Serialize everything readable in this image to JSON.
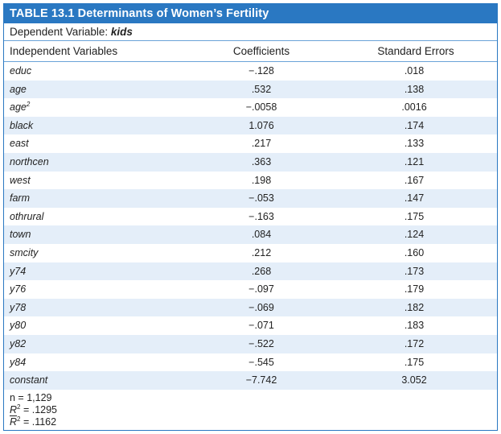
{
  "table": {
    "title": "TABLE 13.1  Determinants of Women’s Fertility",
    "dependent_label": "Dependent Variable:",
    "dependent_var": "kids",
    "headers": {
      "variables": "Independent Variables",
      "coefficients": "Coefficients",
      "std_errors": "Standard Errors"
    },
    "rows": [
      {
        "var": "educ",
        "coef": "−.128",
        "se": ".018"
      },
      {
        "var": "age",
        "coef": ".532",
        "se": ".138"
      },
      {
        "var": "age",
        "sup": "2",
        "coef": "−.0058",
        "se": ".0016"
      },
      {
        "var": "black",
        "coef": "1.076",
        "se": ".174"
      },
      {
        "var": "east",
        "coef": ".217",
        "se": ".133"
      },
      {
        "var": "northcen",
        "coef": ".363",
        "se": ".121"
      },
      {
        "var": "west",
        "coef": ".198",
        "se": ".167"
      },
      {
        "var": "farm",
        "coef": "−.053",
        "se": ".147"
      },
      {
        "var": "othrural",
        "coef": "−.163",
        "se": ".175"
      },
      {
        "var": "town",
        "coef": ".084",
        "se": ".124"
      },
      {
        "var": "smcity",
        "coef": ".212",
        "se": ".160"
      },
      {
        "var": "y74",
        "coef": ".268",
        "se": ".173"
      },
      {
        "var": "y76",
        "coef": "−.097",
        "se": ".179"
      },
      {
        "var": "y78",
        "coef": "−.069",
        "se": ".182"
      },
      {
        "var": "y80",
        "coef": "−.071",
        "se": ".183"
      },
      {
        "var": "y82",
        "coef": "−.522",
        "se": ".172"
      },
      {
        "var": "y84",
        "coef": "−.545",
        "se": ".175"
      },
      {
        "var": "constant",
        "coef": "−7.742",
        "se": "3.052"
      }
    ],
    "stats": {
      "n": "n = 1,129",
      "r2_label": "R",
      "r2_value": " = .1295",
      "adj_r2_label": "R",
      "adj_r2_value": " = .1162"
    }
  }
}
